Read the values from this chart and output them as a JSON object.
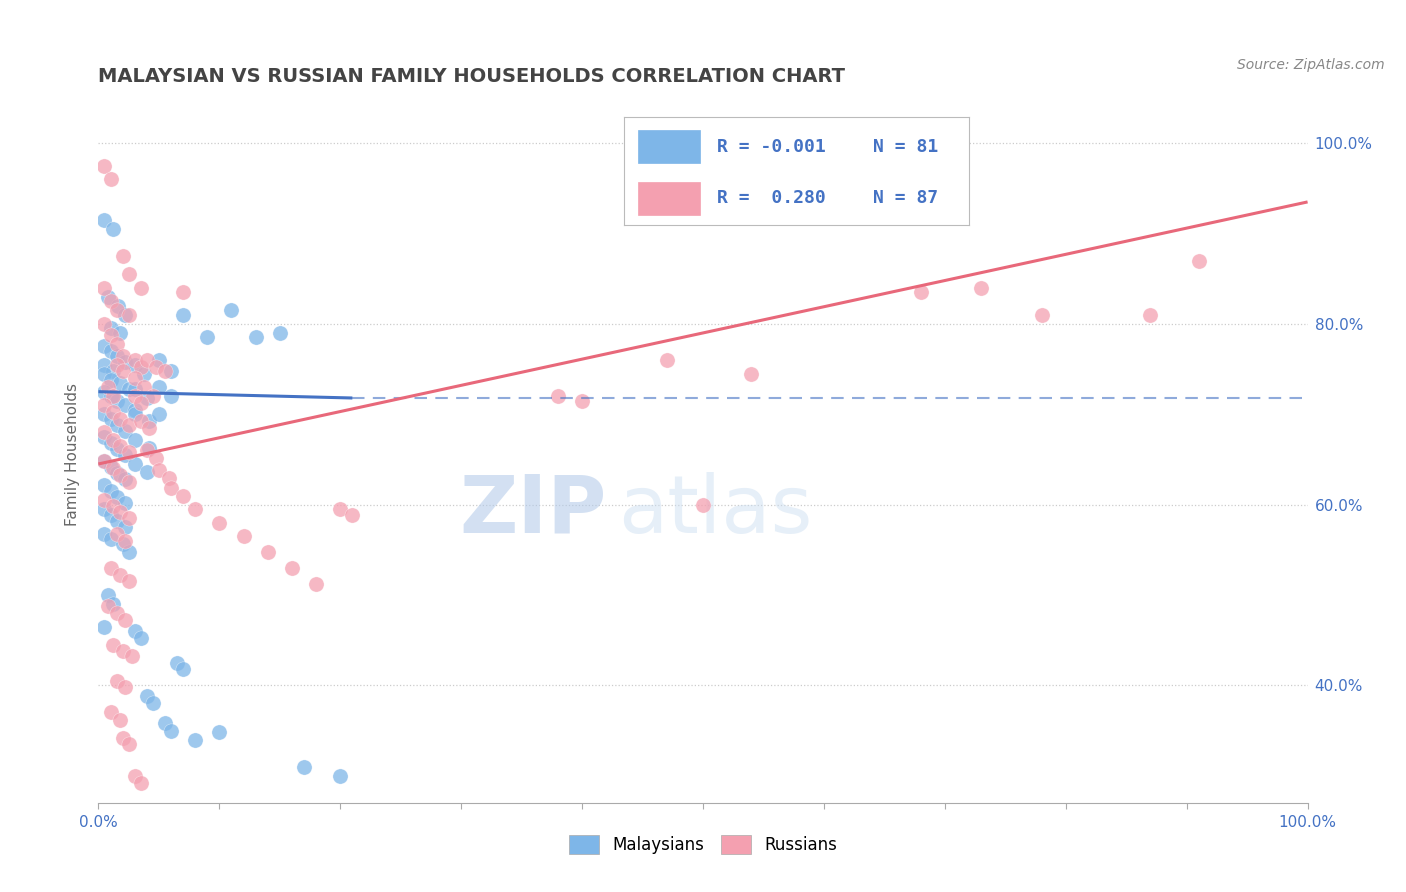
{
  "title": "MALAYSIAN VS RUSSIAN FAMILY HOUSEHOLDS CORRELATION CHART",
  "source_text": "Source: ZipAtlas.com",
  "ylabel": "Family Households",
  "xlim": [
    0.0,
    1.0
  ],
  "ylim": [
    0.27,
    1.04
  ],
  "yticks": [
    0.4,
    0.6,
    0.8,
    1.0
  ],
  "ytick_labels": [
    "40.0%",
    "60.0%",
    "80.0%",
    "100.0%"
  ],
  "malaysian_color": "#7EB6E8",
  "russian_color": "#F4A0B0",
  "malaysian_line_color": "#4472C4",
  "russian_line_color": "#E8687A",
  "background_color": "#FFFFFF",
  "grid_color": "#AAAAAA",
  "legend_text_color": "#4472C4",
  "r_malaysian": -0.001,
  "n_malaysian": 81,
  "r_russian": 0.28,
  "n_russian": 87,
  "watermark_zip": "ZIP",
  "watermark_atlas": "atlas",
  "title_color": "#444444",
  "title_fontsize": 14,
  "source_fontsize": 10,
  "mal_line_x_start": 0.0,
  "mal_line_x_end": 0.21,
  "mal_line_y_start": 0.725,
  "mal_line_y_end": 0.718,
  "mal_line_dashed_x_start": 0.21,
  "mal_line_dashed_x_end": 1.0,
  "mal_line_dashed_y": 0.718,
  "rus_line_x_start": 0.0,
  "rus_line_x_end": 1.0,
  "rus_line_y_start": 0.645,
  "rus_line_y_end": 0.935,
  "legend_r1": "R = -0.001",
  "legend_n1": "N = 81",
  "legend_r2": "R =  0.280",
  "legend_n2": "N = 87",
  "malaysian_points": [
    [
      0.005,
      0.915
    ],
    [
      0.012,
      0.905
    ],
    [
      0.008,
      0.83
    ],
    [
      0.016,
      0.82
    ],
    [
      0.022,
      0.81
    ],
    [
      0.01,
      0.795
    ],
    [
      0.018,
      0.79
    ],
    [
      0.005,
      0.775
    ],
    [
      0.01,
      0.77
    ],
    [
      0.015,
      0.765
    ],
    [
      0.022,
      0.758
    ],
    [
      0.005,
      0.755
    ],
    [
      0.012,
      0.748
    ],
    [
      0.005,
      0.745
    ],
    [
      0.01,
      0.738
    ],
    [
      0.018,
      0.735
    ],
    [
      0.025,
      0.728
    ],
    [
      0.005,
      0.725
    ],
    [
      0.01,
      0.72
    ],
    [
      0.015,
      0.715
    ],
    [
      0.022,
      0.71
    ],
    [
      0.03,
      0.705
    ],
    [
      0.005,
      0.7
    ],
    [
      0.01,
      0.695
    ],
    [
      0.015,
      0.688
    ],
    [
      0.022,
      0.682
    ],
    [
      0.005,
      0.675
    ],
    [
      0.01,
      0.668
    ],
    [
      0.015,
      0.662
    ],
    [
      0.022,
      0.655
    ],
    [
      0.005,
      0.648
    ],
    [
      0.01,
      0.642
    ],
    [
      0.015,
      0.635
    ],
    [
      0.022,
      0.628
    ],
    [
      0.005,
      0.622
    ],
    [
      0.01,
      0.615
    ],
    [
      0.015,
      0.608
    ],
    [
      0.022,
      0.602
    ],
    [
      0.005,
      0.595
    ],
    [
      0.01,
      0.588
    ],
    [
      0.015,
      0.582
    ],
    [
      0.022,
      0.575
    ],
    [
      0.005,
      0.568
    ],
    [
      0.01,
      0.562
    ],
    [
      0.03,
      0.755
    ],
    [
      0.038,
      0.745
    ],
    [
      0.03,
      0.728
    ],
    [
      0.04,
      0.718
    ],
    [
      0.03,
      0.7
    ],
    [
      0.042,
      0.692
    ],
    [
      0.03,
      0.672
    ],
    [
      0.042,
      0.663
    ],
    [
      0.03,
      0.645
    ],
    [
      0.04,
      0.636
    ],
    [
      0.05,
      0.76
    ],
    [
      0.06,
      0.748
    ],
    [
      0.05,
      0.73
    ],
    [
      0.06,
      0.72
    ],
    [
      0.05,
      0.7
    ],
    [
      0.07,
      0.81
    ],
    [
      0.09,
      0.785
    ],
    [
      0.11,
      0.815
    ],
    [
      0.13,
      0.785
    ],
    [
      0.15,
      0.79
    ],
    [
      0.008,
      0.5
    ],
    [
      0.012,
      0.49
    ],
    [
      0.005,
      0.465
    ],
    [
      0.03,
      0.46
    ],
    [
      0.035,
      0.452
    ],
    [
      0.04,
      0.388
    ],
    [
      0.045,
      0.38
    ],
    [
      0.055,
      0.358
    ],
    [
      0.06,
      0.35
    ],
    [
      0.065,
      0.425
    ],
    [
      0.07,
      0.418
    ],
    [
      0.08,
      0.34
    ],
    [
      0.02,
      0.556
    ],
    [
      0.025,
      0.548
    ],
    [
      0.1,
      0.348
    ],
    [
      0.17,
      0.31
    ],
    [
      0.2,
      0.3
    ]
  ],
  "russian_points": [
    [
      0.005,
      0.975
    ],
    [
      0.01,
      0.96
    ],
    [
      0.02,
      0.875
    ],
    [
      0.025,
      0.855
    ],
    [
      0.035,
      0.84
    ],
    [
      0.005,
      0.84
    ],
    [
      0.01,
      0.825
    ],
    [
      0.015,
      0.815
    ],
    [
      0.07,
      0.835
    ],
    [
      0.005,
      0.8
    ],
    [
      0.01,
      0.788
    ],
    [
      0.015,
      0.778
    ],
    [
      0.02,
      0.765
    ],
    [
      0.03,
      0.76
    ],
    [
      0.035,
      0.752
    ],
    [
      0.025,
      0.81
    ],
    [
      0.015,
      0.755
    ],
    [
      0.02,
      0.748
    ],
    [
      0.03,
      0.74
    ],
    [
      0.038,
      0.73
    ],
    [
      0.045,
      0.72
    ],
    [
      0.008,
      0.73
    ],
    [
      0.012,
      0.72
    ],
    [
      0.04,
      0.76
    ],
    [
      0.048,
      0.752
    ],
    [
      0.055,
      0.748
    ],
    [
      0.005,
      0.71
    ],
    [
      0.012,
      0.702
    ],
    [
      0.018,
      0.695
    ],
    [
      0.025,
      0.688
    ],
    [
      0.005,
      0.68
    ],
    [
      0.012,
      0.672
    ],
    [
      0.018,
      0.665
    ],
    [
      0.025,
      0.658
    ],
    [
      0.03,
      0.72
    ],
    [
      0.035,
      0.712
    ],
    [
      0.005,
      0.648
    ],
    [
      0.012,
      0.64
    ],
    [
      0.018,
      0.633
    ],
    [
      0.025,
      0.625
    ],
    [
      0.035,
      0.692
    ],
    [
      0.042,
      0.685
    ],
    [
      0.005,
      0.605
    ],
    [
      0.012,
      0.598
    ],
    [
      0.018,
      0.592
    ],
    [
      0.025,
      0.585
    ],
    [
      0.04,
      0.66
    ],
    [
      0.048,
      0.652
    ],
    [
      0.015,
      0.568
    ],
    [
      0.022,
      0.56
    ],
    [
      0.05,
      0.638
    ],
    [
      0.058,
      0.63
    ],
    [
      0.01,
      0.53
    ],
    [
      0.018,
      0.522
    ],
    [
      0.025,
      0.515
    ],
    [
      0.06,
      0.618
    ],
    [
      0.07,
      0.61
    ],
    [
      0.008,
      0.488
    ],
    [
      0.015,
      0.48
    ],
    [
      0.022,
      0.472
    ],
    [
      0.08,
      0.595
    ],
    [
      0.012,
      0.445
    ],
    [
      0.02,
      0.438
    ],
    [
      0.028,
      0.432
    ],
    [
      0.1,
      0.58
    ],
    [
      0.015,
      0.405
    ],
    [
      0.022,
      0.398
    ],
    [
      0.12,
      0.565
    ],
    [
      0.01,
      0.37
    ],
    [
      0.018,
      0.362
    ],
    [
      0.14,
      0.548
    ],
    [
      0.02,
      0.342
    ],
    [
      0.025,
      0.335
    ],
    [
      0.16,
      0.53
    ],
    [
      0.03,
      0.3
    ],
    [
      0.035,
      0.292
    ],
    [
      0.18,
      0.512
    ],
    [
      0.2,
      0.595
    ],
    [
      0.21,
      0.588
    ],
    [
      0.38,
      0.72
    ],
    [
      0.4,
      0.715
    ],
    [
      0.47,
      0.76
    ],
    [
      0.5,
      0.6
    ],
    [
      0.54,
      0.745
    ],
    [
      0.68,
      0.835
    ],
    [
      0.73,
      0.84
    ],
    [
      0.78,
      0.81
    ],
    [
      0.87,
      0.81
    ],
    [
      0.91,
      0.87
    ]
  ]
}
